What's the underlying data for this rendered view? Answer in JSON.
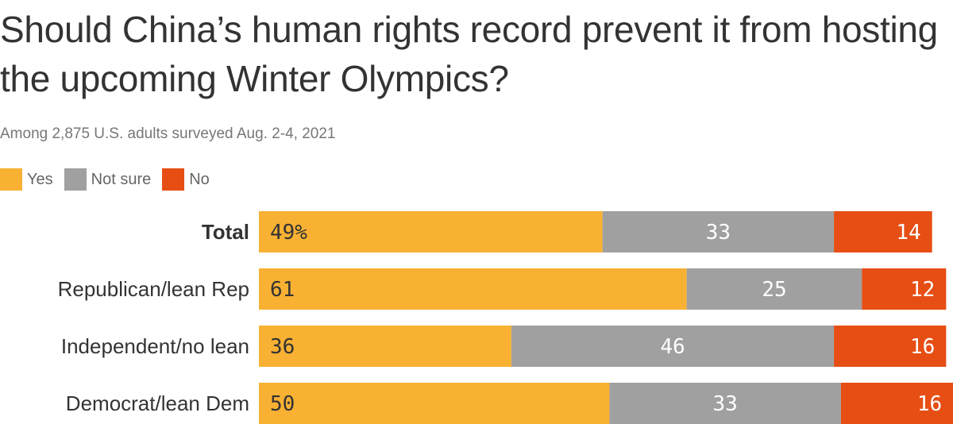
{
  "chart_data": {
    "type": "bar",
    "orientation": "horizontal",
    "stacked": true,
    "title": "Should China’s human rights record prevent it from hosting the upcoming Winter Olympics?",
    "subtitle": "Among 2,875 U.S. adults surveyed Aug. 2-4, 2021",
    "categories": [
      "Total",
      "Republican/lean Rep",
      "Independent/no lean",
      "Democrat/lean Dem"
    ],
    "series": [
      {
        "name": "Yes",
        "values": [
          49,
          61,
          36,
          50
        ],
        "color": "#f8b133",
        "label_color": "#333333"
      },
      {
        "name": "Not sure",
        "values": [
          33,
          25,
          46,
          33
        ],
        "color": "#a0a0a0",
        "label_color": "#ffffff"
      },
      {
        "name": "No",
        "values": [
          14,
          12,
          16,
          16
        ],
        "color": "#e64e14",
        "label_color": "#ffffff"
      }
    ],
    "value_labels": [
      [
        "49%",
        "33",
        "14"
      ],
      [
        "61",
        "25",
        "12"
      ],
      [
        "36",
        "46",
        "16"
      ],
      [
        "50",
        "33",
        "16"
      ]
    ],
    "bold_categories": [
      "Total"
    ],
    "xlim": [
      0,
      100
    ],
    "grid": false,
    "legend_position": "top-left"
  }
}
